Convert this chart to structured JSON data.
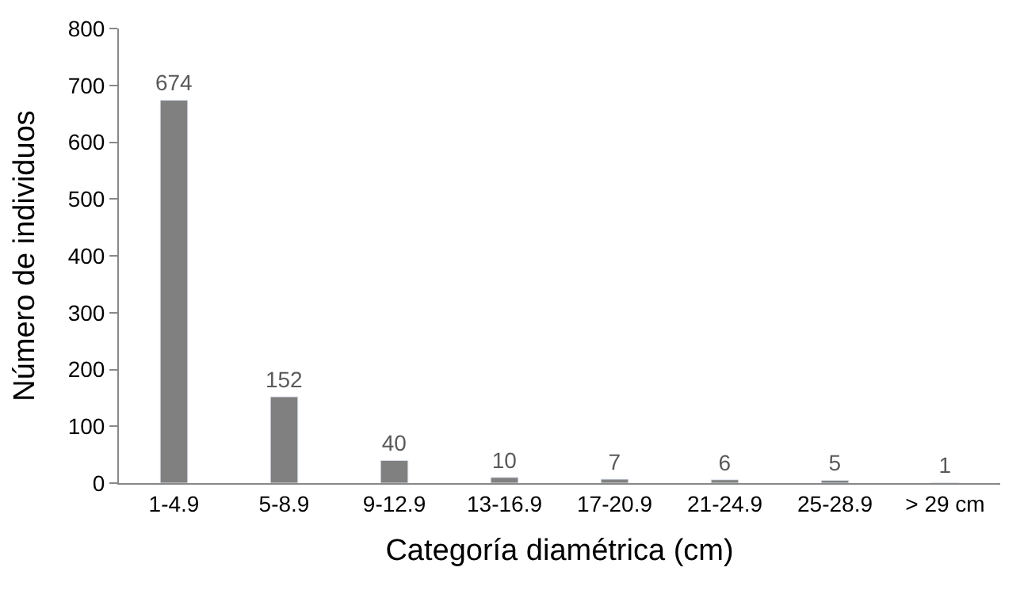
{
  "chart_data": {
    "type": "bar",
    "xlabel": "Categoría diamétrica (cm)",
    "ylabel": "Número de individuos",
    "categories": [
      "1-4.9",
      "5-8.9",
      "9-12.9",
      "13-16.9",
      "17-20.9",
      "21-24.9",
      "25-28.9",
      "> 29 cm"
    ],
    "values": [
      674,
      152,
      40,
      10,
      7,
      6,
      5,
      1
    ],
    "color": "#808080",
    "ylim": [
      0,
      800
    ],
    "yticks": [
      0,
      100,
      200,
      300,
      400,
      500,
      600,
      700,
      800
    ],
    "data_labels": true
  }
}
